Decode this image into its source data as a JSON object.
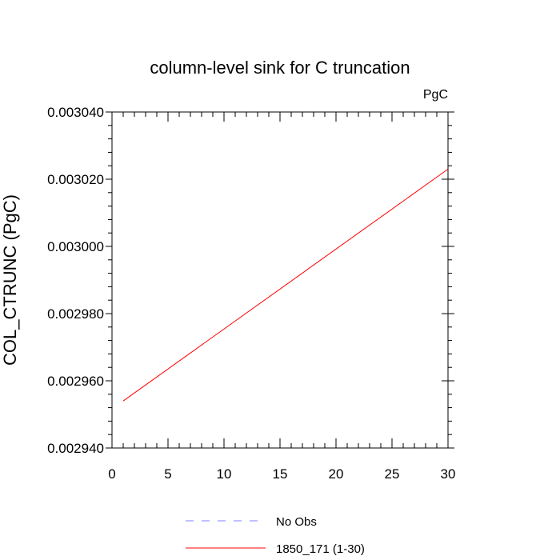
{
  "chart_data": {
    "type": "line",
    "title": "column-level sink for C truncation",
    "units_label": "PgC",
    "ylabel": "COL_CTRUNC  (PgC)",
    "xlabel": "",
    "xlim": [
      0,
      30
    ],
    "ylim": [
      0.00294,
      0.00304
    ],
    "x_ticks": [
      0,
      5,
      10,
      15,
      20,
      25,
      30
    ],
    "x_tick_labels": [
      "0",
      "5",
      "10",
      "15",
      "20",
      "25",
      "30"
    ],
    "y_ticks": [
      0.00294,
      0.00296,
      0.00298,
      0.003,
      0.00302,
      0.00304
    ],
    "y_tick_labels": [
      "0.002940",
      "0.002960",
      "0.002980",
      "0.003000",
      "0.003020",
      "0.003040"
    ],
    "grid": false,
    "legend_position": "bottom",
    "series": [
      {
        "name": "No Obs",
        "color": "#8080ff",
        "style": "dashed",
        "x": [],
        "y": []
      },
      {
        "name": "1850_171 (1-30)",
        "color": "#ff0000",
        "style": "solid",
        "x": [
          1,
          30
        ],
        "y": [
          0.002954,
          0.003023
        ]
      }
    ]
  }
}
